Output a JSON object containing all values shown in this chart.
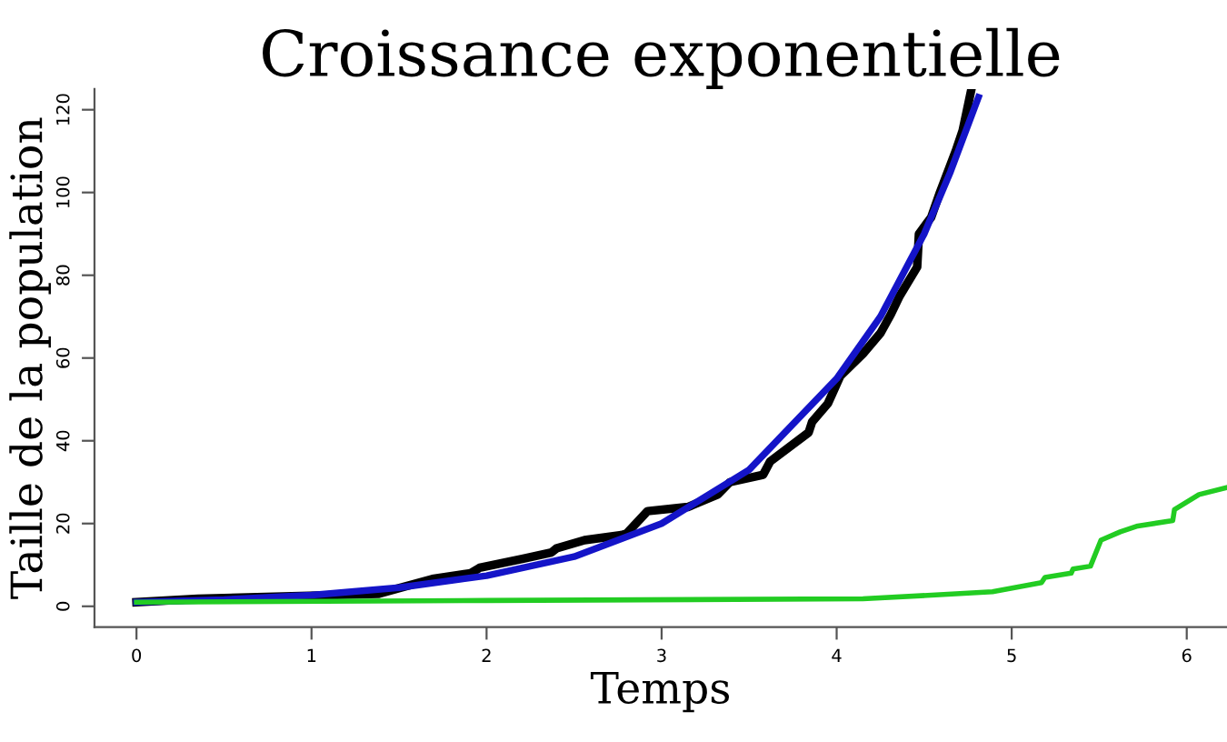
{
  "chart_data": {
    "type": "line",
    "title": "Croissance exponentielle",
    "xlabel": "Temps",
    "ylabel": "Taille de la population",
    "xlim": [
      -0.24,
      6.23
    ],
    "ylim": [
      -5,
      125
    ],
    "xticks": [
      0,
      1,
      2,
      3,
      4,
      5,
      6
    ],
    "yticks": [
      0,
      20,
      40,
      60,
      80,
      100,
      120
    ],
    "grid": false,
    "legend": false,
    "marker": "none",
    "line_style": "solid",
    "series": [
      {
        "color": "#000000",
        "x": [
          0,
          0.35,
          1.38,
          1.69,
          1.91,
          1.96,
          2.21,
          2.37,
          2.4,
          2.56,
          2.77,
          2.8,
          2.92,
          3.15,
          3.32,
          3.39,
          3.58,
          3.62,
          3.84,
          3.86,
          3.95,
          4.02,
          4.15,
          4.25,
          4.31,
          4.36,
          4.46,
          4.47,
          4.54,
          4.59,
          4.68,
          4.72,
          4.77
        ],
        "values": [
          1,
          1.8,
          3,
          6.6,
          8,
          9.3,
          11.5,
          13,
          14,
          16,
          17.2,
          17.6,
          23,
          24,
          27,
          30,
          31.8,
          35,
          42,
          44.6,
          49,
          55.6,
          61,
          66,
          70.6,
          75,
          82,
          90,
          94,
          100,
          110,
          115,
          125
        ]
      },
      {
        "color": "#1414c8",
        "x": [
          0,
          0.5,
          1,
          1.5,
          2,
          2.5,
          3,
          3.5,
          4,
          4.25,
          4.5,
          4.65,
          4.81
        ],
        "values": [
          1,
          1.6,
          2.7,
          4.5,
          7.4,
          12,
          20,
          33,
          55,
          70,
          90,
          105,
          123
        ]
      },
      {
        "color": "#22cc22",
        "x": [
          0,
          2,
          4.15,
          4.89,
          5.17,
          5.19,
          5.34,
          5.35,
          5.45,
          5.51,
          5.62,
          5.72,
          5.92,
          5.93,
          6.07,
          6.23
        ],
        "values": [
          1,
          1.4,
          1.8,
          3.5,
          5.7,
          7,
          8,
          9,
          9.7,
          16,
          18,
          19.4,
          20.7,
          23.4,
          27,
          28.7
        ]
      }
    ]
  }
}
